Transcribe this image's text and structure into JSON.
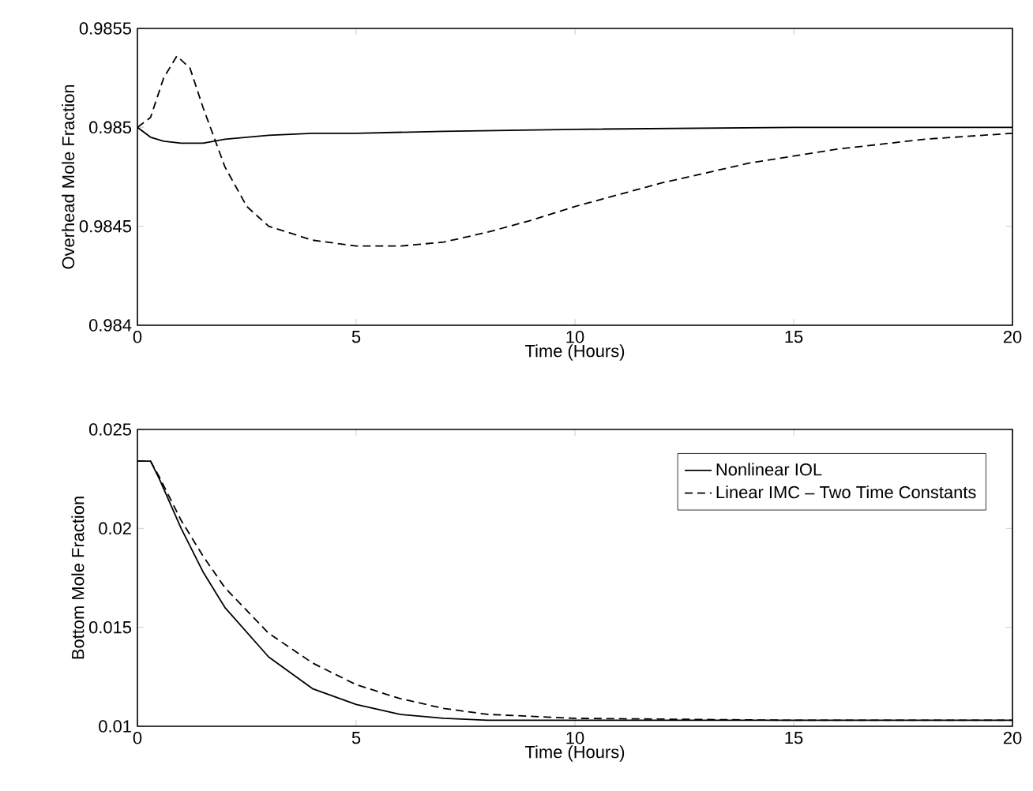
{
  "chart_data": [
    {
      "type": "line",
      "ylabel": "Overhead Mole Fraction",
      "xlabel": "Time (Hours)",
      "xlim": [
        0,
        20
      ],
      "ylim": [
        0.984,
        0.9855
      ],
      "xticks": [
        0,
        5,
        10,
        15,
        20
      ],
      "yticks": [
        0.984,
        0.9845,
        0.985,
        0.9855
      ],
      "grid": false,
      "legend": false,
      "series": [
        {
          "color": "#000000",
          "line_style": "solid",
          "x": [
            0,
            0.3,
            0.6,
            1,
            1.5,
            2,
            3,
            4,
            5,
            7,
            10,
            15,
            20
          ],
          "values": [
            0.985,
            0.98495,
            0.98493,
            0.98492,
            0.98492,
            0.98494,
            0.98496,
            0.98497,
            0.98497,
            0.98498,
            0.98499,
            0.985,
            0.985
          ]
        },
        {
          "color": "#000000",
          "line_style": "dashed",
          "x": [
            0,
            0.3,
            0.6,
            0.9,
            1.2,
            1.5,
            2,
            2.5,
            3,
            4,
            5,
            5.5,
            6,
            7,
            8,
            9,
            10,
            12,
            14,
            16,
            18,
            20
          ],
          "values": [
            0.985,
            0.98505,
            0.98525,
            0.98536,
            0.9853,
            0.9851,
            0.9848,
            0.9846,
            0.9845,
            0.98443,
            0.9844,
            0.9844,
            0.9844,
            0.98442,
            0.98447,
            0.98453,
            0.9846,
            0.98472,
            0.98482,
            0.98489,
            0.98494,
            0.98497
          ]
        }
      ]
    },
    {
      "type": "line",
      "ylabel": "Bottom Mole Fraction",
      "xlabel": "Time (Hours)",
      "xlim": [
        0,
        20
      ],
      "ylim": [
        0.01,
        0.025
      ],
      "xticks": [
        0,
        5,
        10,
        15,
        20
      ],
      "yticks": [
        0.01,
        0.015,
        0.02,
        0.025
      ],
      "grid": false,
      "legend": "top right",
      "series": [
        {
          "name": "Nonlinear IOL",
          "color": "#000000",
          "line_style": "solid",
          "x": [
            0,
            0.3,
            0.5,
            1,
            1.5,
            2,
            3,
            4,
            5,
            6,
            7,
            8,
            10,
            15,
            20
          ],
          "values": [
            0.0234,
            0.0234,
            0.0225,
            0.02,
            0.0178,
            0.016,
            0.0135,
            0.0119,
            0.0111,
            0.0106,
            0.0104,
            0.0103,
            0.0103,
            0.0103,
            0.0103
          ]
        },
        {
          "name": "Linear IMC – Two Time Constants",
          "color": "#000000",
          "line_style": "dashed",
          "x": [
            0,
            0.3,
            0.5,
            1,
            1.5,
            2,
            3,
            4,
            5,
            6,
            7,
            8,
            10,
            15,
            20
          ],
          "values": [
            0.0234,
            0.0234,
            0.0226,
            0.0204,
            0.0186,
            0.017,
            0.0147,
            0.0132,
            0.0121,
            0.0114,
            0.0109,
            0.0106,
            0.0104,
            0.0103,
            0.0103
          ]
        }
      ]
    }
  ]
}
